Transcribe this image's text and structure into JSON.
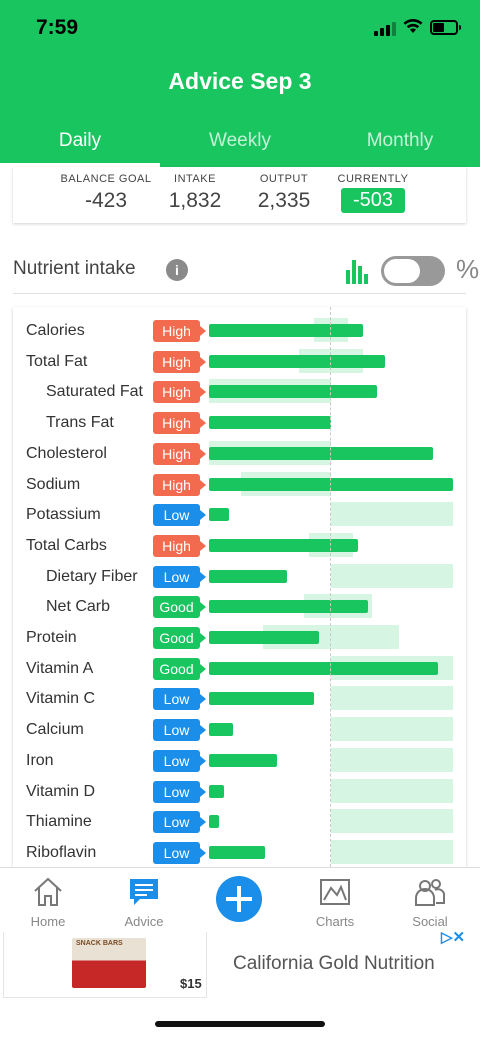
{
  "status_bar": {
    "time": "7:59"
  },
  "header": {
    "title": "Advice Sep 3"
  },
  "tabs": [
    {
      "label": "Daily",
      "active": true
    },
    {
      "label": "Weekly",
      "active": false
    },
    {
      "label": "Monthly",
      "active": false
    }
  ],
  "summary": {
    "balance_goal": {
      "label": "BALANCE GOAL",
      "value": "-423"
    },
    "intake": {
      "label": "INTAKE",
      "value": "1,832"
    },
    "output": {
      "label": "OUTPUT",
      "value": "2,335"
    },
    "currently": {
      "label": "CURRENTLY",
      "value": "-503"
    }
  },
  "nutrient_section": {
    "title": "Nutrient intake",
    "info_icon": "i",
    "percent_label": "%",
    "chart_toggle_on": false
  },
  "nutrients": [
    {
      "name": "Calories",
      "status": "High",
      "sub": false,
      "value": 0.63,
      "band": [
        0.43,
        0.57
      ]
    },
    {
      "name": "Total Fat",
      "status": "High",
      "sub": false,
      "value": 0.72,
      "band": [
        0.37,
        0.63
      ]
    },
    {
      "name": "Saturated Fat",
      "status": "High",
      "sub": true,
      "value": 0.69,
      "band": [
        0.0,
        0.5
      ]
    },
    {
      "name": "Trans Fat",
      "status": "High",
      "sub": true,
      "value": 0.5,
      "band": [
        0.0,
        0.0
      ]
    },
    {
      "name": "Cholesterol",
      "status": "High",
      "sub": false,
      "value": 0.92,
      "band": [
        0.0,
        0.5
      ]
    },
    {
      "name": "Sodium",
      "status": "High",
      "sub": false,
      "value": 1.0,
      "band": [
        0.13,
        0.5
      ]
    },
    {
      "name": "Potassium",
      "status": "Low",
      "sub": false,
      "value": 0.08,
      "band": [
        0.5,
        1.0
      ]
    },
    {
      "name": "Total Carbs",
      "status": "High",
      "sub": false,
      "value": 0.61,
      "band": [
        0.41,
        0.59
      ]
    },
    {
      "name": "Dietary Fiber",
      "status": "Low",
      "sub": true,
      "value": 0.32,
      "band": [
        0.5,
        1.0
      ]
    },
    {
      "name": "Net Carb",
      "status": "Good",
      "sub": true,
      "value": 0.65,
      "band": [
        0.39,
        0.67
      ]
    },
    {
      "name": "Protein",
      "status": "Good",
      "sub": false,
      "value": 0.45,
      "band": [
        0.22,
        0.78
      ]
    },
    {
      "name": "Vitamin A",
      "status": "Good",
      "sub": false,
      "value": 0.94,
      "band": [
        0.5,
        1.0
      ]
    },
    {
      "name": "Vitamin C",
      "status": "Low",
      "sub": false,
      "value": 0.43,
      "band": [
        0.5,
        1.0
      ]
    },
    {
      "name": "Calcium",
      "status": "Low",
      "sub": false,
      "value": 0.1,
      "band": [
        0.5,
        1.0
      ]
    },
    {
      "name": "Iron",
      "status": "Low",
      "sub": false,
      "value": 0.28,
      "band": [
        0.5,
        1.0
      ]
    },
    {
      "name": "Vitamin D",
      "status": "Low",
      "sub": false,
      "value": 0.06,
      "band": [
        0.5,
        1.0
      ]
    },
    {
      "name": "Thiamine",
      "status": "Low",
      "sub": false,
      "value": 0.04,
      "band": [
        0.5,
        1.0
      ]
    },
    {
      "name": "Riboflavin",
      "status": "Low",
      "sub": false,
      "value": 0.23,
      "band": [
        0.5,
        1.0
      ]
    }
  ],
  "colors": {
    "brand_green": "#19c55f",
    "high": "#f26b4f",
    "low": "#1a8ee8",
    "good": "#19c55f"
  },
  "bottom_nav": [
    {
      "label": "Home",
      "icon": "home-icon",
      "active": false
    },
    {
      "label": "Advice",
      "icon": "advice-icon",
      "active": true
    },
    {
      "label": "",
      "icon": "add-icon",
      "active": false
    },
    {
      "label": "Charts",
      "icon": "charts-icon",
      "active": false
    },
    {
      "label": "Social",
      "icon": "social-icon",
      "active": false
    }
  ],
  "ad": {
    "product_text": "SNACK BARS",
    "price": "$15",
    "advertiser": "California Gold Nutrition"
  }
}
